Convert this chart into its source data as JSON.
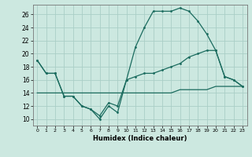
{
  "xlabel": "Humidex (Indice chaleur)",
  "bg_color": "#cce8e0",
  "grid_color": "#aacec6",
  "line_color": "#1a6b5e",
  "xlim": [
    -0.5,
    23.5
  ],
  "ylim": [
    9.0,
    27.5
  ],
  "xticks": [
    0,
    1,
    2,
    3,
    4,
    5,
    6,
    7,
    8,
    9,
    10,
    11,
    12,
    13,
    14,
    15,
    16,
    17,
    18,
    19,
    20,
    21,
    22,
    23
  ],
  "yticks": [
    10,
    12,
    14,
    16,
    18,
    20,
    22,
    24,
    26
  ],
  "series1_x": [
    0,
    1,
    2,
    3,
    4,
    5,
    6,
    7,
    8,
    9,
    10,
    11,
    12,
    13,
    14,
    15,
    16,
    17,
    18,
    19,
    20,
    21,
    22,
    23
  ],
  "series1_y": [
    19.0,
    17.0,
    17.0,
    13.5,
    13.5,
    12.0,
    11.5,
    10.0,
    12.0,
    11.0,
    16.0,
    21.0,
    24.0,
    26.5,
    26.5,
    26.5,
    27.0,
    26.5,
    25.0,
    23.0,
    20.5,
    16.5,
    16.0,
    15.0
  ],
  "series2_x": [
    0,
    1,
    2,
    3,
    4,
    5,
    6,
    7,
    8,
    9,
    10,
    11,
    12,
    13,
    14,
    15,
    16,
    17,
    18,
    19,
    20,
    21,
    22,
    23
  ],
  "series2_y": [
    19.0,
    17.0,
    17.0,
    13.5,
    13.5,
    12.0,
    11.5,
    10.5,
    12.5,
    12.0,
    16.0,
    16.5,
    17.0,
    17.0,
    17.5,
    18.0,
    18.5,
    19.5,
    20.0,
    20.5,
    20.5,
    16.5,
    16.0,
    15.0
  ],
  "series3_x": [
    0,
    1,
    2,
    3,
    4,
    5,
    6,
    7,
    8,
    9,
    10,
    11,
    12,
    13,
    14,
    15,
    16,
    17,
    18,
    19,
    20,
    21,
    22,
    23
  ],
  "series3_y": [
    14.0,
    14.0,
    14.0,
    14.0,
    14.0,
    14.0,
    14.0,
    14.0,
    14.0,
    14.0,
    14.0,
    14.0,
    14.0,
    14.0,
    14.0,
    14.0,
    14.5,
    14.5,
    14.5,
    14.5,
    15.0,
    15.0,
    15.0,
    15.0
  ]
}
